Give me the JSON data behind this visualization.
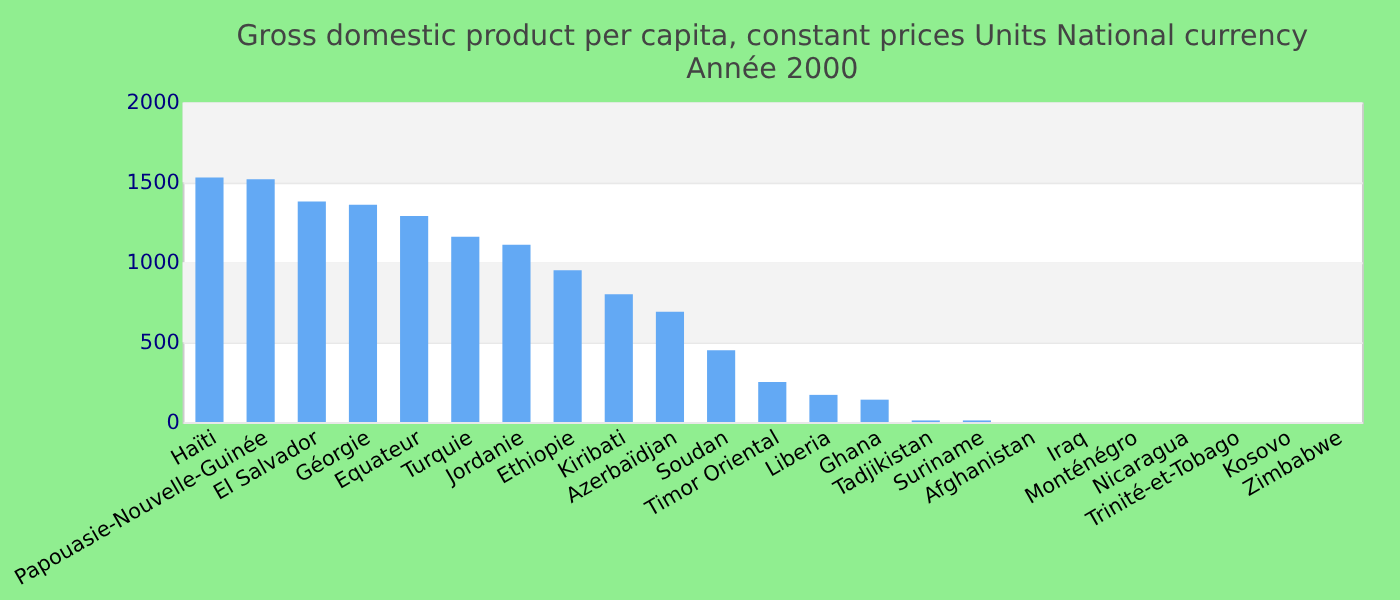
{
  "chart_data": {
    "type": "bar",
    "title": [
      "Gross domestic product per capita, constant prices Units National currency",
      "Année 2000"
    ],
    "categories": [
      "Haïti",
      "Papouasie-Nouvelle-Guinée",
      "El Salvador",
      "Géorgie",
      "Equateur",
      "Turquie",
      "Jordanie",
      "Ethiopie",
      "Kiribati",
      "Azerbaïdjan",
      "Soudan",
      "Timor Oriental",
      "Liberia",
      "Ghana",
      "Tadjikistan",
      "Suriname",
      "Afghanistan",
      "Iraq",
      "Monténégro",
      "Nicaragua",
      "Trinité-et-Tobago",
      "Kosovo",
      "Zimbabwe"
    ],
    "values": [
      1530,
      1520,
      1380,
      1360,
      1290,
      1160,
      1110,
      950,
      800,
      690,
      450,
      250,
      170,
      140,
      10,
      10,
      null,
      null,
      null,
      null,
      null,
      null,
      null
    ],
    "color": "#63a9f4",
    "ylim": [
      0,
      2000
    ],
    "yticks": [
      0,
      500,
      1000,
      1500,
      2000
    ],
    "grid": "y"
  }
}
